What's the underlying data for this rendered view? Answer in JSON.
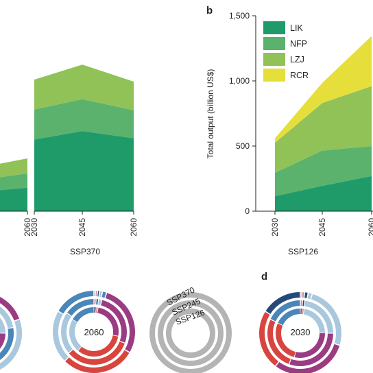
{
  "figure": {
    "panel_b_letter": "b",
    "panel_d_letter": "d"
  },
  "colors": {
    "LIK": "#1f9b6a",
    "NFP": "#5ab26d",
    "LZJ": "#90c258",
    "RCR": "#e6df3b",
    "ring_gray": "#b4b4b4",
    "ring_purple": "#9b3c83",
    "ring_red": "#d8453e",
    "ring_lightblue": "#a9c8de",
    "ring_blue": "#4a86b7",
    "ring_navy": "#254a7a",
    "ring_pink": "#d98c92"
  },
  "chart_data": [
    {
      "id": "panel-a-ssp370",
      "type": "area",
      "stacked": true,
      "xlabel": "SSP370",
      "ylabel": "",
      "x": [
        "2030",
        "2045",
        "2060"
      ],
      "series": [
        {
          "name": "LIK",
          "values": [
            550,
            615,
            560
          ]
        },
        {
          "name": "NFP",
          "values": [
            230,
            245,
            215
          ]
        },
        {
          "name": "LZJ",
          "values": [
            230,
            265,
            220
          ]
        },
        {
          "name": "RCR",
          "values": [
            0,
            0,
            0
          ]
        }
      ],
      "partial_left_x": "2060",
      "partial_left_values": {
        "LIK": 180,
        "NFP": 110,
        "LZJ": 115
      },
      "ylim": [
        0,
        1500
      ]
    },
    {
      "id": "panel-b-ssp126",
      "type": "area",
      "stacked": true,
      "xlabel": "SSP126",
      "ylabel": "Total output (billion US$)",
      "x": [
        "2030",
        "2045",
        "2060"
      ],
      "yticks": [
        "0",
        "500",
        "1,000",
        "1,500"
      ],
      "ytick_values": [
        0,
        500,
        1000,
        1500
      ],
      "ylim": [
        0,
        1500
      ],
      "legend": [
        "LIK",
        "NFP",
        "LZJ",
        "RCR"
      ],
      "legend_position": "top-left",
      "series": [
        {
          "name": "LIK",
          "values": [
            115,
            195,
            270
          ]
        },
        {
          "name": "NFP",
          "values": [
            180,
            270,
            230
          ]
        },
        {
          "name": "LZJ",
          "values": [
            230,
            365,
            460
          ]
        },
        {
          "name": "RCR",
          "values": [
            35,
            155,
            385
          ]
        }
      ]
    },
    {
      "id": "panel-c-d-rings",
      "type": "pie",
      "ring_legend_labels": [
        "SSP370",
        "SSP245",
        "SSP126"
      ],
      "donuts": [
        {
          "id": "donut-2060",
          "center_label": "2060"
        },
        {
          "id": "donut-2030",
          "center_label": "2030"
        }
      ]
    }
  ]
}
